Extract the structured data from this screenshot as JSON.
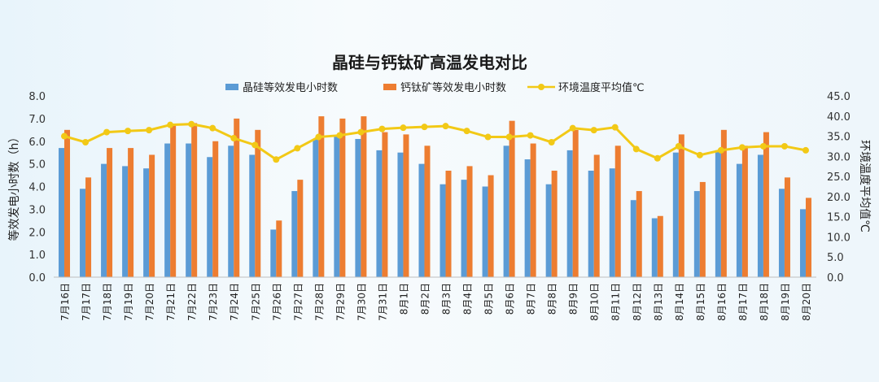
{
  "chart_data": {
    "type": "bar",
    "title": "晶硅与钙钛矿高温发电对比",
    "ylabel": "等效发电小时数（h）",
    "y2label": "环境温度平均值℃",
    "ylim": [
      0,
      8
    ],
    "y2lim": [
      0,
      45
    ],
    "yticks": [
      "0.0",
      "1.0",
      "2.0",
      "3.0",
      "4.0",
      "5.0",
      "6.0",
      "7.0",
      "8.0"
    ],
    "y2ticks": [
      "0.0",
      "5.0",
      "10.0",
      "15.0",
      "20.0",
      "25.0",
      "30.0",
      "35.0",
      "40.0",
      "45.0"
    ],
    "legend_position": "top-center",
    "grid": false,
    "categories": [
      "7月16日",
      "7月17日",
      "7月18日",
      "7月19日",
      "7月20日",
      "7月21日",
      "7月22日",
      "7月23日",
      "7月24日",
      "7月25日",
      "7月26日",
      "7月27日",
      "7月28日",
      "7月29日",
      "7月30日",
      "7月31日",
      "8月1日",
      "8月2日",
      "8月3日",
      "8月4日",
      "8月5日",
      "8月6日",
      "8月7日",
      "8月8日",
      "8月9日",
      "8月10日",
      "8月11日",
      "8月12日",
      "8月13日",
      "8月14日",
      "8月15日",
      "8月16日",
      "8月17日",
      "8月18日",
      "8月19日",
      "8月20日"
    ],
    "series": [
      {
        "name": "晶硅等效发电小时数",
        "kind": "bar",
        "axis": "left",
        "color": "#5b9bd5",
        "values": [
          5.7,
          3.9,
          5.0,
          4.9,
          4.8,
          5.9,
          5.9,
          5.3,
          5.8,
          5.4,
          2.1,
          3.8,
          6.1,
          6.2,
          6.1,
          5.6,
          5.5,
          5.0,
          4.1,
          4.3,
          4.0,
          5.8,
          5.2,
          4.1,
          5.6,
          4.7,
          4.8,
          3.4,
          2.6,
          5.5,
          3.8,
          5.6,
          5.0,
          5.4,
          3.9,
          3.0
        ]
      },
      {
        "name": "钙钛矿等效发电小时数",
        "kind": "bar",
        "axis": "left",
        "color": "#ed7d31",
        "values": [
          6.5,
          4.4,
          5.7,
          5.7,
          5.4,
          6.7,
          6.8,
          6.0,
          7.0,
          6.5,
          2.5,
          4.3,
          7.1,
          7.0,
          7.1,
          6.4,
          6.3,
          5.8,
          4.7,
          4.9,
          4.5,
          6.9,
          5.9,
          4.7,
          6.5,
          5.4,
          5.8,
          3.8,
          2.7,
          6.3,
          4.2,
          6.5,
          5.8,
          6.4,
          4.4,
          3.5
        ]
      },
      {
        "name": "环境温度平均值℃",
        "kind": "line",
        "axis": "right",
        "color": "#f2c916",
        "values": [
          35.0,
          33.5,
          36.0,
          36.3,
          36.5,
          37.8,
          38.0,
          37.0,
          34.5,
          32.8,
          29.2,
          32.0,
          34.8,
          35.2,
          36.0,
          36.8,
          37.1,
          37.3,
          37.5,
          36.3,
          34.8,
          34.8,
          35.2,
          33.5,
          37.0,
          36.5,
          37.2,
          31.8,
          29.5,
          32.5,
          30.3,
          31.5,
          32.2,
          32.5,
          32.5,
          31.5
        ]
      }
    ]
  }
}
